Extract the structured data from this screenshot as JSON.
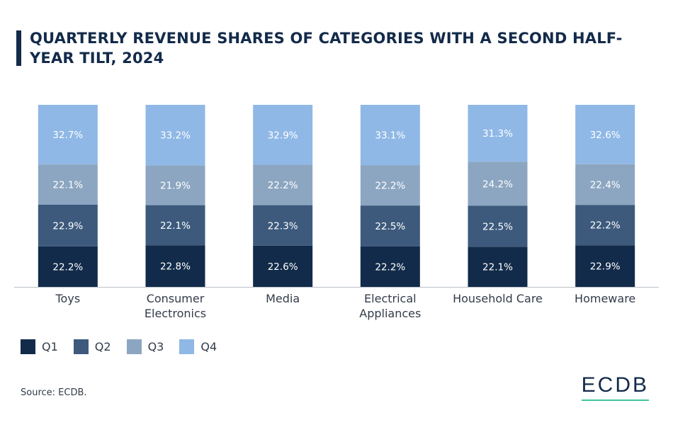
{
  "title": "QUARTERLY REVENUE SHARES OF CATEGORIES WITH A SECOND HALF-YEAR TILT, 2024",
  "source": "Source: ECDB.",
  "logo": "ECDB",
  "colors": {
    "q1": "#122b4a",
    "q2": "#3d5a7d",
    "q3": "#8ca6c1",
    "q4": "#8fb8e6",
    "title": "#132a4a",
    "accent": "#3fc3a0"
  },
  "chart_data": {
    "type": "bar",
    "stacked": true,
    "title": "QUARTERLY REVENUE SHARES OF CATEGORIES WITH A SECOND HALF-YEAR TILT, 2024",
    "categories": [
      [
        "Toys"
      ],
      [
        "Consumer",
        "Electronics"
      ],
      [
        "Media"
      ],
      [
        "Electrical",
        "Appliances"
      ],
      [
        "Household Care"
      ],
      [
        "Homeware"
      ]
    ],
    "series": [
      {
        "name": "Q1",
        "values": [
          22.2,
          22.8,
          22.6,
          22.2,
          22.1,
          22.9
        ],
        "labels": [
          "22.2%",
          "22.8%",
          "22.6%",
          "22.2%",
          "22.1%",
          "22.9%"
        ]
      },
      {
        "name": "Q2",
        "values": [
          22.9,
          22.1,
          22.3,
          22.5,
          22.5,
          22.2
        ],
        "labels": [
          "22.9%",
          "22.1%",
          "22.3%",
          "22.5%",
          "22.5%",
          "22.2%"
        ]
      },
      {
        "name": "Q3",
        "values": [
          22.1,
          21.9,
          22.2,
          22.2,
          24.2,
          22.4
        ],
        "labels": [
          "22.1%",
          "21.9%",
          "22.2%",
          "22.2%",
          "24.2%",
          "22.4%"
        ]
      },
      {
        "name": "Q4",
        "values": [
          32.7,
          33.2,
          32.9,
          33.1,
          31.3,
          32.6
        ],
        "labels": [
          "32.7%",
          "33.2%",
          "32.9%",
          "33.1%",
          "31.3%",
          "32.6%"
        ]
      }
    ],
    "ylim": [
      0,
      100
    ],
    "xlabel": "",
    "ylabel": "",
    "legend": "bottom-left"
  },
  "legend": [
    {
      "label": "Q1",
      "color": "#122b4a"
    },
    {
      "label": "Q2",
      "color": "#3d5a7d"
    },
    {
      "label": "Q3",
      "color": "#8ca6c1"
    },
    {
      "label": "Q4",
      "color": "#8fb8e6"
    }
  ]
}
